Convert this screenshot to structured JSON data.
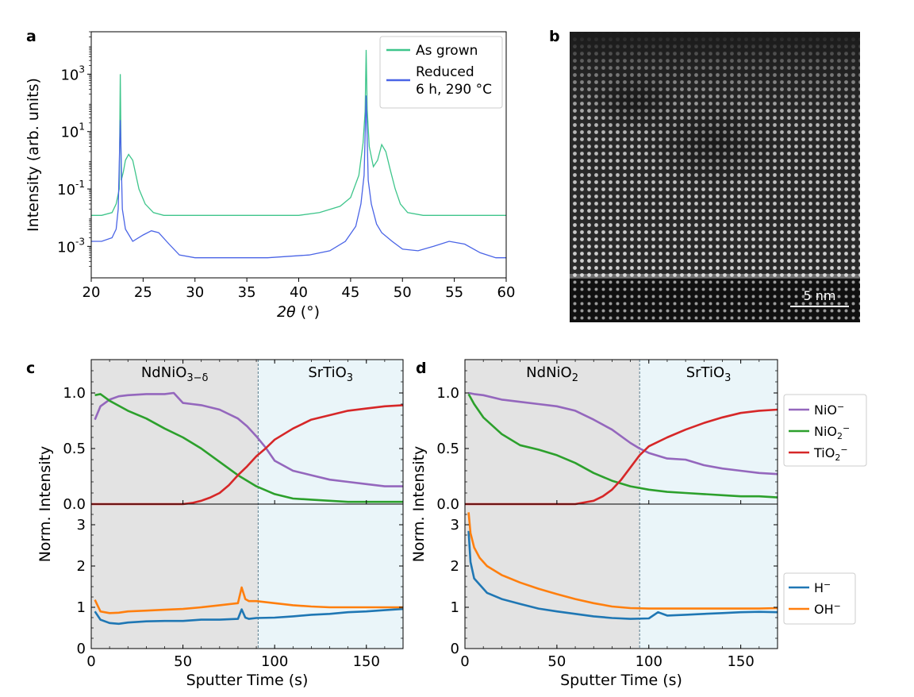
{
  "panels": {
    "a": "a",
    "b": "b",
    "c": "c",
    "d": "d"
  },
  "stem_image": {
    "scalebar_label": "5 nm"
  },
  "colors": {
    "as_grown": "#3ec58b",
    "reduced": "#4a64e6",
    "NiO": "#9467bd",
    "NiO2": "#2ca02c",
    "TiO2": "#d62728",
    "H": "#1f77b4",
    "OH": "#ff7f0e",
    "film_bg": "#e3e3e3",
    "substrate_bg": "#eaf5f9"
  },
  "chart_data": [
    {
      "panel": "a",
      "type": "line",
      "xlabel": "2θ (°)",
      "ylabel": "Intensity (arb. units)",
      "xlim": [
        20,
        60
      ],
      "yscale": "log",
      "ylim": [
        8e-05,
        30000
      ],
      "xticks": [
        "20",
        "25",
        "30",
        "35",
        "40",
        "45",
        "50",
        "55",
        "60"
      ],
      "yticks": [
        "10^3",
        "10^1",
        "10^-1",
        "10^-3"
      ],
      "legend_position": "upper right",
      "series": [
        {
          "name": "As grown",
          "x": [
            20.0,
            21.0,
            22.0,
            22.4,
            22.7,
            22.8,
            22.9,
            23.1,
            23.3,
            23.6,
            24.0,
            24.6,
            25.2,
            26.0,
            27.0,
            28.0,
            30.0,
            35.0,
            40.0,
            42.0,
            44.0,
            45.0,
            45.8,
            46.2,
            46.4,
            46.5,
            46.6,
            46.8,
            47.2,
            47.6,
            48.0,
            48.4,
            48.8,
            49.3,
            49.8,
            50.5,
            52.0,
            56.0,
            60.0
          ],
          "y": [
            0.012,
            0.012,
            0.015,
            0.03,
            0.1,
            1000,
            0.2,
            0.4,
            1.0,
            1.6,
            1.0,
            0.1,
            0.03,
            0.015,
            0.012,
            0.012,
            0.012,
            0.012,
            0.012,
            0.015,
            0.025,
            0.05,
            0.3,
            4.0,
            50,
            7000,
            60,
            3.0,
            0.6,
            1.0,
            3.5,
            2.0,
            0.5,
            0.1,
            0.03,
            0.015,
            0.012,
            0.012,
            0.012
          ]
        },
        {
          "name": "Reduced\n6 h, 290 °C",
          "x": [
            20.0,
            21.0,
            22.0,
            22.4,
            22.6,
            22.8,
            23.0,
            23.3,
            24.0,
            25.0,
            25.8,
            26.5,
            27.5,
            28.5,
            30.0,
            33.0,
            37.0,
            41.0,
            43.0,
            44.5,
            45.5,
            46.0,
            46.3,
            46.5,
            46.7,
            47.0,
            47.5,
            48.0,
            49.0,
            50.0,
            51.5,
            53.0,
            54.5,
            56.0,
            57.5,
            59.0,
            60.0
          ],
          "y": [
            0.0015,
            0.0015,
            0.002,
            0.004,
            0.02,
            25,
            0.02,
            0.004,
            0.0015,
            0.0025,
            0.0035,
            0.003,
            0.0012,
            0.0005,
            0.0004,
            0.0004,
            0.0004,
            0.0005,
            0.0007,
            0.0015,
            0.005,
            0.03,
            0.3,
            180,
            0.2,
            0.03,
            0.006,
            0.003,
            0.0015,
            0.0008,
            0.0007,
            0.001,
            0.0015,
            0.0012,
            0.0006,
            0.0004,
            0.0004
          ]
        }
      ]
    },
    {
      "panel": "c",
      "type": "line",
      "xlabel": "Sputter Time (s)",
      "ylabel": "Norm. Intensity",
      "xlim": [
        0,
        170
      ],
      "xticks": [
        "0",
        "50",
        "100",
        "150"
      ],
      "interface_x": 91,
      "regions": [
        "NdNiO3−δ",
        "SrTiO3"
      ],
      "top": {
        "ylim": [
          0,
          1.3
        ],
        "yticks": [
          "0.0",
          "0.5",
          "1.0"
        ],
        "series": [
          {
            "name": "NiO⁻",
            "x": [
              2,
              5,
              10,
              15,
              20,
              30,
              40,
              45,
              50,
              55,
              60,
              70,
              80,
              85,
              90,
              95,
              100,
              110,
              120,
              130,
              140,
              150,
              160,
              170
            ],
            "y": [
              0.76,
              0.88,
              0.94,
              0.97,
              0.98,
              0.99,
              0.99,
              1.0,
              0.91,
              0.9,
              0.89,
              0.85,
              0.77,
              0.7,
              0.61,
              0.51,
              0.39,
              0.3,
              0.26,
              0.22,
              0.2,
              0.18,
              0.16,
              0.16
            ]
          },
          {
            "name": "NiO₂⁻",
            "x": [
              2,
              5,
              10,
              20,
              30,
              40,
              50,
              60,
              70,
              80,
              90,
              100,
              110,
              120,
              130,
              140,
              150,
              160,
              170
            ],
            "y": [
              0.98,
              0.99,
              0.93,
              0.84,
              0.77,
              0.68,
              0.6,
              0.5,
              0.38,
              0.26,
              0.16,
              0.09,
              0.05,
              0.04,
              0.03,
              0.02,
              0.02,
              0.02,
              0.02
            ]
          },
          {
            "name": "TiO₂⁻",
            "x": [
              0,
              20,
              40,
              50,
              55,
              60,
              65,
              70,
              75,
              80,
              85,
              90,
              95,
              100,
              110,
              120,
              130,
              140,
              150,
              160,
              170
            ],
            "y": [
              0,
              0,
              0,
              0,
              0.01,
              0.03,
              0.06,
              0.1,
              0.17,
              0.26,
              0.34,
              0.43,
              0.5,
              0.58,
              0.68,
              0.76,
              0.8,
              0.84,
              0.86,
              0.88,
              0.89
            ]
          }
        ]
      },
      "bottom": {
        "ylim": [
          0,
          3.5
        ],
        "yticks": [
          "0",
          "1",
          "2",
          "3"
        ],
        "series": [
          {
            "name": "H⁻",
            "x": [
              2,
              5,
              10,
              15,
              20,
              30,
              40,
              50,
              60,
              70,
              80,
              82,
              84,
              86,
              90,
              100,
              110,
              120,
              130,
              140,
              150,
              160,
              170
            ],
            "y": [
              0.9,
              0.7,
              0.62,
              0.6,
              0.63,
              0.66,
              0.67,
              0.67,
              0.7,
              0.7,
              0.72,
              0.95,
              0.75,
              0.72,
              0.74,
              0.75,
              0.78,
              0.82,
              0.84,
              0.88,
              0.9,
              0.93,
              0.96
            ]
          },
          {
            "name": "OH⁻",
            "x": [
              2,
              5,
              10,
              15,
              20,
              30,
              40,
              50,
              60,
              70,
              80,
              82,
              84,
              86,
              90,
              100,
              110,
              120,
              130,
              140,
              150,
              160,
              170
            ],
            "y": [
              1.18,
              0.9,
              0.86,
              0.87,
              0.9,
              0.92,
              0.94,
              0.96,
              1.0,
              1.05,
              1.1,
              1.48,
              1.2,
              1.15,
              1.15,
              1.1,
              1.05,
              1.02,
              1.0,
              1.0,
              1.0,
              1.0,
              1.0
            ]
          }
        ]
      }
    },
    {
      "panel": "d",
      "type": "line",
      "xlabel": "Sputter Time (s)",
      "ylabel": "Norm. Intensity",
      "xlim": [
        0,
        170
      ],
      "xticks": [
        "0",
        "50",
        "100",
        "150"
      ],
      "interface_x": 95,
      "regions": [
        "NdNiO2",
        "SrTiO3"
      ],
      "top": {
        "ylim": [
          0,
          1.3
        ],
        "yticks": [
          "0.0",
          "0.5",
          "1.0"
        ],
        "series": [
          {
            "name": "NiO⁻",
            "x": [
              2,
              5,
              10,
              20,
              30,
              40,
              50,
              60,
              70,
              80,
              90,
              95,
              100,
              110,
              120,
              130,
              140,
              150,
              160,
              170
            ],
            "y": [
              1.0,
              0.99,
              0.98,
              0.94,
              0.92,
              0.9,
              0.88,
              0.84,
              0.76,
              0.67,
              0.55,
              0.5,
              0.46,
              0.41,
              0.4,
              0.35,
              0.32,
              0.3,
              0.28,
              0.27
            ]
          },
          {
            "name": "NiO₂⁻",
            "x": [
              2,
              5,
              10,
              20,
              30,
              40,
              50,
              60,
              70,
              80,
              90,
              100,
              110,
              120,
              130,
              140,
              150,
              160,
              170
            ],
            "y": [
              0.99,
              0.9,
              0.78,
              0.63,
              0.53,
              0.49,
              0.44,
              0.37,
              0.28,
              0.21,
              0.16,
              0.13,
              0.11,
              0.1,
              0.09,
              0.08,
              0.07,
              0.07,
              0.06
            ]
          },
          {
            "name": "TiO₂⁻",
            "x": [
              0,
              30,
              50,
              60,
              70,
              75,
              80,
              85,
              90,
              95,
              100,
              110,
              120,
              130,
              140,
              150,
              160,
              170
            ],
            "y": [
              0,
              0,
              0,
              0,
              0.03,
              0.07,
              0.13,
              0.22,
              0.33,
              0.44,
              0.52,
              0.6,
              0.67,
              0.73,
              0.78,
              0.82,
              0.84,
              0.85
            ]
          }
        ]
      },
      "bottom": {
        "ylim": [
          0,
          3.5
        ],
        "yticks": [
          "0",
          "1",
          "2",
          "3"
        ],
        "series": [
          {
            "name": "H⁻",
            "x": [
              2,
              3,
              5,
              8,
              12,
              20,
              30,
              40,
              50,
              60,
              70,
              80,
              90,
              100,
              105,
              110,
              120,
              130,
              140,
              150,
              160,
              170
            ],
            "y": [
              2.85,
              2.1,
              1.7,
              1.55,
              1.35,
              1.2,
              1.08,
              0.97,
              0.9,
              0.84,
              0.78,
              0.74,
              0.72,
              0.73,
              0.88,
              0.8,
              0.82,
              0.84,
              0.86,
              0.88,
              0.89,
              0.88
            ]
          },
          {
            "name": "OH⁻",
            "x": [
              2,
              3,
              5,
              8,
              12,
              20,
              30,
              40,
              50,
              60,
              70,
              80,
              90,
              100,
              110,
              120,
              130,
              140,
              150,
              160,
              170
            ],
            "y": [
              3.3,
              2.8,
              2.45,
              2.2,
              2.0,
              1.78,
              1.6,
              1.45,
              1.32,
              1.2,
              1.1,
              1.02,
              0.98,
              0.97,
              0.97,
              0.97,
              0.97,
              0.97,
              0.97,
              0.97,
              0.98
            ]
          }
        ]
      }
    }
  ],
  "legends": {
    "a": [
      "As grown",
      "Reduced",
      "6 h, 290 °C"
    ],
    "top": [
      "NiO",
      "NiO",
      "TiO"
    ],
    "bottom": [
      "H",
      "OH"
    ]
  }
}
